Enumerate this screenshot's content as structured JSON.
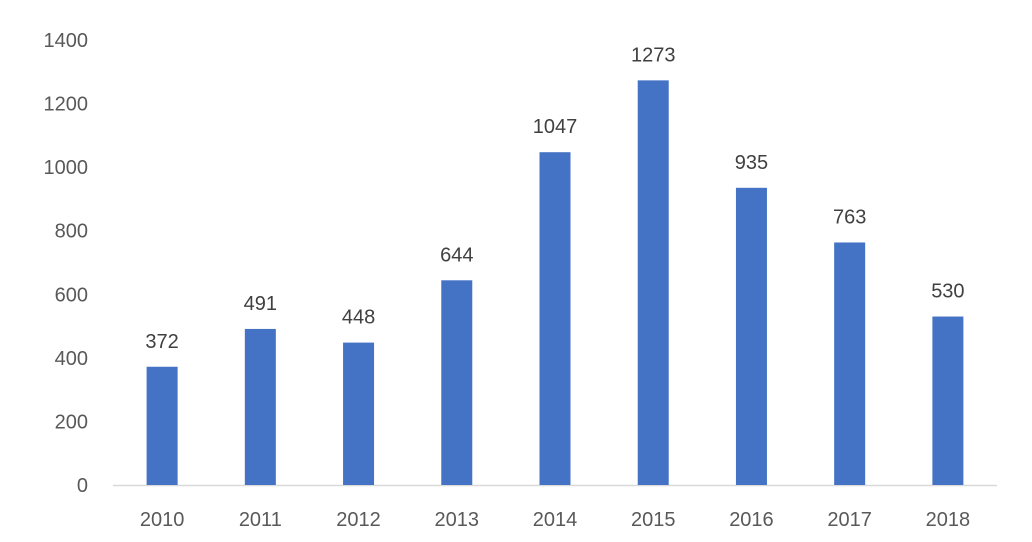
{
  "chart_data": {
    "type": "bar",
    "title": "",
    "xlabel": "",
    "ylabel": "",
    "categories": [
      "2010",
      "2011",
      "2012",
      "2013",
      "2014",
      "2015",
      "2016",
      "2017",
      "2018"
    ],
    "values": [
      372,
      491,
      448,
      644,
      1047,
      1273,
      935,
      763,
      530
    ],
    "data_labels": [
      "372",
      "491",
      "448",
      "644",
      "1047",
      "1273",
      "935",
      "763",
      "530"
    ],
    "ylim": [
      0,
      1400
    ],
    "y_ticks": [
      0,
      200,
      400,
      600,
      800,
      1000,
      1200,
      1400
    ],
    "y_tick_labels": [
      "0",
      "200",
      "400",
      "600",
      "800",
      "1000",
      "1200",
      "1400"
    ],
    "grid": false,
    "legend": "none",
    "bar_color": "#4472C4",
    "axis_color": "#D9D9D9"
  }
}
